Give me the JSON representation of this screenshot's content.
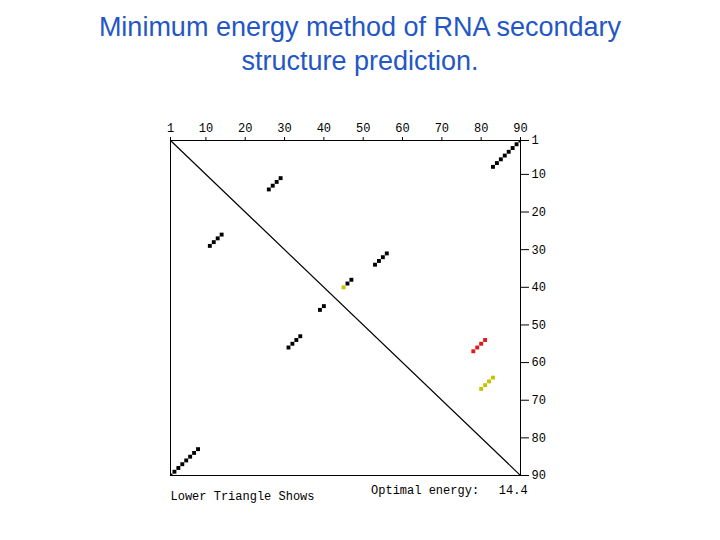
{
  "chart_data": {
    "type": "scatter",
    "title": "Minimum energy method of RNA secondary structure prediction.",
    "xlim": [
      1,
      90
    ],
    "ylim": [
      1,
      90
    ],
    "xticks": [
      1,
      10,
      20,
      30,
      40,
      50,
      60,
      70,
      80,
      90
    ],
    "yticks": [
      1,
      10,
      20,
      30,
      40,
      50,
      60,
      70,
      80,
      90
    ],
    "grid": false,
    "marker": "square",
    "series": [
      {
        "type": "line",
        "color": "#000000",
        "values": [
          [
            1,
            1
          ],
          [
            90,
            90
          ]
        ]
      },
      {
        "type": "scatter",
        "color": "#000000",
        "values": [
          [
            90,
            1
          ],
          [
            89,
            2
          ],
          [
            88,
            3
          ],
          [
            87,
            4
          ],
          [
            86,
            5
          ],
          [
            85,
            6
          ],
          [
            84,
            7
          ],
          [
            83,
            8
          ],
          [
            29,
            11
          ],
          [
            28,
            12
          ],
          [
            27,
            13
          ],
          [
            26,
            14
          ],
          [
            56,
            31
          ],
          [
            55,
            32
          ],
          [
            54,
            33
          ],
          [
            53,
            34
          ],
          [
            47,
            38
          ],
          [
            46,
            39
          ],
          [
            11,
            29
          ],
          [
            12,
            28
          ],
          [
            13,
            27
          ],
          [
            14,
            26
          ],
          [
            31,
            56
          ],
          [
            32,
            55
          ],
          [
            33,
            54
          ],
          [
            34,
            53
          ],
          [
            39,
            46
          ],
          [
            40,
            45
          ],
          [
            1,
            90
          ],
          [
            2,
            89
          ],
          [
            3,
            88
          ],
          [
            4,
            87
          ],
          [
            5,
            86
          ],
          [
            6,
            85
          ],
          [
            7,
            84
          ],
          [
            8,
            83
          ]
        ]
      },
      {
        "type": "scatter",
        "color": "#e01818",
        "values": [
          [
            81,
            54
          ],
          [
            80,
            55
          ],
          [
            79,
            56
          ],
          [
            78,
            57
          ]
        ]
      },
      {
        "type": "scatter",
        "color": "#c4c400",
        "values": [
          [
            45,
            40
          ],
          [
            83,
            64
          ],
          [
            82,
            65
          ],
          [
            81,
            66
          ],
          [
            80,
            67
          ]
        ]
      }
    ],
    "annotations": [
      {
        "text": "Lower Triangle Shows",
        "x": 1,
        "y": 95.5
      },
      {
        "text": "Optimal energy:",
        "x": 52,
        "y": 94
      },
      {
        "text": "14.4",
        "x": 84.5,
        "y": 94
      }
    ]
  }
}
